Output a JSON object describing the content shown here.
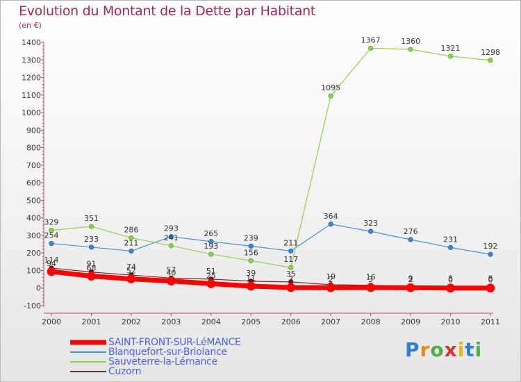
{
  "header": {
    "title": "Evolution du Montant de la Dette par Habitant",
    "unit": "(en €)"
  },
  "logo": {
    "text": "Proxiti",
    "colors": [
      "#2f7fd0",
      "#e68a1e",
      "#58a94a",
      "#d6342c",
      "#e6b31e",
      "#2f7fd0",
      "#58a94a"
    ]
  },
  "chart_data": {
    "type": "line",
    "title": "Evolution du Montant de la Dette par Habitant",
    "ylabel": "(en €)",
    "xlabel": "",
    "x": [
      "2000",
      "2001",
      "2002",
      "2003",
      "2004",
      "2005",
      "2006",
      "2007",
      "2008",
      "2009",
      "2010",
      "2011"
    ],
    "ylim": [
      -100,
      1400
    ],
    "yticks": [
      -100,
      0,
      100,
      200,
      300,
      400,
      500,
      600,
      700,
      800,
      900,
      1000,
      1100,
      1200,
      1300,
      1400
    ],
    "grid": false,
    "legend_position": "bottom-left",
    "series": [
      {
        "name": "SAINT-FRONT-SUR-LéMANCE",
        "color": "#ff0000",
        "values": [
          94,
          68,
          52,
          40,
          25,
          11,
          3,
          2,
          3,
          2,
          0,
          0
        ],
        "labels": [
          "94",
          "68",
          "52",
          "40",
          "25",
          "11",
          "3",
          "2",
          "3",
          "2",
          "0",
          "0"
        ]
      },
      {
        "name": "Blanquefort-sur-Briolance",
        "color": "#4a90d0",
        "values": [
          254,
          233,
          211,
          293,
          265,
          239,
          211,
          364,
          323,
          276,
          231,
          192
        ],
        "labels": [
          "254",
          "233",
          "211",
          "293",
          "265",
          "239",
          "211",
          "364",
          "323",
          "276",
          "231",
          "192"
        ]
      },
      {
        "name": "Sauveterre-la-Lémance",
        "color": "#8fd050",
        "values": [
          329,
          351,
          286,
          241,
          193,
          156,
          117,
          1095,
          1367,
          1360,
          1321,
          1298
        ],
        "labels": [
          "329",
          "351",
          "286",
          "241",
          "193",
          "156",
          "117",
          "1095",
          "1367",
          "1360",
          "1321",
          "1298"
        ]
      },
      {
        "name": "Cuzorn",
        "color": "#7a2a2a",
        "values": [
          114,
          91,
          74,
          57,
          51,
          39,
          35,
          19,
          16,
          9,
          8,
          8
        ],
        "labels": [
          "114",
          "91",
          "74",
          "57",
          "51",
          "39",
          "35",
          "19",
          "16",
          "9",
          "8",
          "8"
        ]
      }
    ]
  }
}
